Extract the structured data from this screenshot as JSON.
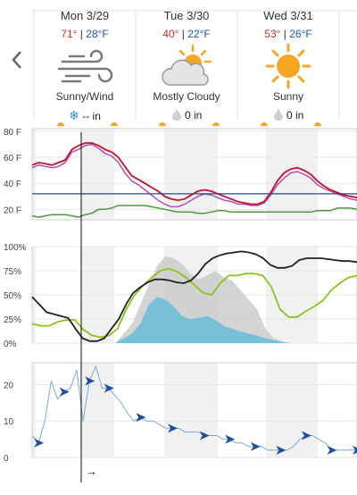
{
  "days": [
    {
      "label": "Mon 3/29",
      "hi": "71°",
      "lo": "28°F",
      "condition": "Sunny/Wind",
      "icon": "wind-icon",
      "precip_icon": "snowflake-icon",
      "precip": "-- in"
    },
    {
      "label": "Tue 3/30",
      "hi": "40°",
      "lo": "22°F",
      "condition": "Mostly Cloudy",
      "icon": "partly-cloudy-icon",
      "precip_icon": "raindrop-icon",
      "precip": "0 in"
    },
    {
      "label": "Wed 3/31",
      "hi": "53°",
      "lo": "26°F",
      "condition": "Sunny",
      "icon": "sun-icon",
      "precip_icon": "raindrop-icon",
      "precip": "0 in"
    }
  ],
  "separator": "|",
  "colors": {
    "hi": "#c8312a",
    "lo": "#1a58a8",
    "temp": "#c8102e",
    "feels": "#b04fb4",
    "dew": "#4a9a3a",
    "freeze": "#1a4aa0",
    "cloud": "#222222",
    "humidity": "#8cc21c",
    "precip_prob": "#5bb8d8",
    "wind": "#3b7bbf",
    "night_shade": "#f1f1f1",
    "sun": "#f5a623"
  },
  "chart_data": [
    {
      "type": "line",
      "title": "",
      "yticks": [
        "80 F",
        "60 F",
        "40 F",
        "20 F"
      ],
      "ylim": [
        12,
        82
      ],
      "series": [
        {
          "values": [
            54,
            56,
            55,
            54,
            56,
            58,
            66,
            69,
            71,
            71,
            69,
            66,
            64,
            60,
            53,
            46,
            43,
            40,
            37,
            34,
            30,
            28,
            27,
            28,
            31,
            34,
            35,
            34,
            32,
            30,
            28,
            26,
            25,
            24,
            24,
            26,
            33,
            42,
            48,
            51,
            52,
            50,
            47,
            42,
            38,
            35,
            33,
            31,
            30,
            29
          ]
        },
        {
          "values": [
            52,
            54,
            53,
            52,
            53,
            56,
            64,
            66,
            69,
            70,
            67,
            63,
            61,
            56,
            48,
            42,
            39,
            35,
            31,
            27,
            24,
            22,
            22,
            24,
            27,
            30,
            32,
            31,
            29,
            27,
            26,
            24,
            24,
            23,
            23,
            25,
            31,
            39,
            44,
            48,
            49,
            47,
            44,
            39,
            36,
            34,
            32,
            30,
            28,
            27
          ]
        },
        {
          "values": [
            15,
            14,
            15,
            16,
            16,
            16,
            15,
            14,
            16,
            17,
            20,
            20,
            21,
            23,
            23,
            23,
            23,
            23,
            22,
            21,
            20,
            19,
            18,
            18,
            18,
            17,
            17,
            18,
            19,
            19,
            18,
            18,
            18,
            18,
            18,
            18,
            18,
            18,
            18,
            18,
            18,
            18,
            18,
            19,
            19,
            19,
            21,
            21,
            21,
            20
          ]
        },
        {
          "values": [
            32,
            32
          ]
        }
      ]
    },
    {
      "type": "line",
      "title": "",
      "yticks": [
        "100%",
        "75%",
        "50%",
        "25%",
        "0%"
      ],
      "ylim": [
        0,
        100
      ],
      "series": [
        {
          "values": [
            48,
            40,
            32,
            30,
            28,
            26,
            15,
            5,
            2,
            2,
            5,
            15,
            25,
            40,
            52,
            58,
            63,
            66,
            66,
            65,
            63,
            62,
            65,
            72,
            82,
            88,
            91,
            93,
            94,
            95,
            94,
            92,
            88,
            81,
            78,
            78,
            80,
            86,
            88,
            88,
            88,
            87,
            86,
            85,
            85,
            84
          ]
        },
        {
          "values": [
            20,
            18,
            18,
            22,
            24,
            24,
            14,
            8,
            6,
            8,
            15,
            35,
            50,
            60,
            68,
            75,
            77,
            74,
            68,
            60,
            52,
            50,
            62,
            70,
            70,
            72,
            72,
            70,
            58,
            35,
            27,
            27,
            33,
            38,
            44,
            55,
            62,
            68,
            70
          ]
        },
        {
          "values": [
            0,
            0,
            0,
            0,
            0,
            0,
            0,
            0,
            0,
            0,
            0,
            10,
            20,
            40,
            60,
            80,
            90,
            88,
            82,
            72,
            66,
            70,
            75,
            68,
            65,
            55,
            45,
            35,
            15,
            5,
            2,
            0,
            0,
            0,
            0,
            0,
            0,
            0,
            0,
            0
          ]
        },
        {
          "values": [
            0,
            0,
            0,
            0,
            0,
            0,
            0,
            0,
            0,
            0,
            0,
            5,
            10,
            20,
            40,
            48,
            45,
            38,
            28,
            25,
            26,
            28,
            24,
            18,
            15,
            12,
            10,
            8,
            5,
            3,
            1,
            0,
            0,
            0,
            0,
            0,
            0,
            0,
            0,
            0
          ]
        }
      ]
    },
    {
      "type": "line",
      "title": "",
      "yticks": [
        "20",
        "10",
        "0"
      ],
      "ylim": [
        0,
        26
      ],
      "series": [
        {
          "values": [
            6,
            4,
            10,
            21,
            16,
            18,
            19,
            24,
            10,
            21,
            25,
            19,
            19,
            17,
            15,
            12,
            10,
            11,
            10,
            10,
            9,
            8,
            8,
            8,
            7,
            7,
            7,
            6,
            6,
            6,
            5,
            5,
            4,
            4,
            3,
            3,
            3,
            2,
            2,
            2,
            2,
            3,
            5,
            6,
            6,
            5,
            4,
            2,
            2,
            2,
            2,
            2
          ]
        }
      ]
    }
  ],
  "wind_direction_indicator": "→"
}
